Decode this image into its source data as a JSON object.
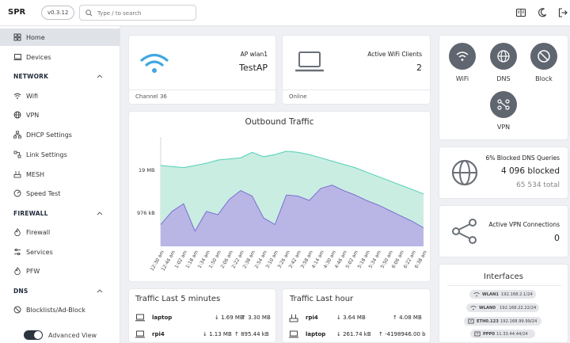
{
  "header": {
    "brand": "SPR",
    "version": "v0.3.12",
    "search_placeholder": "Type / to search",
    "icons": [
      "book-icon",
      "moon-icon",
      "logout-icon"
    ]
  },
  "sidebar": {
    "home": "Home",
    "devices": "Devices",
    "network_section": "NETWORK",
    "network_items": [
      "Wifi",
      "VPN",
      "DHCP Settings",
      "Link Settings",
      "MESH",
      "Speed Test"
    ],
    "firewall_section": "FIREWALL",
    "firewall_items": [
      "Firewall",
      "Services",
      "PFW"
    ],
    "dns_section": "DNS",
    "dns_items": [
      "Blocklists/Ad-Block"
    ],
    "advanced_view": "Advanced View"
  },
  "ap_card": {
    "title": "AP wlan1",
    "value": "TestAP",
    "footer": "Channel 36"
  },
  "clients_card": {
    "title": "Active WiFi Clients",
    "value": "2",
    "footer": "Online"
  },
  "quick_links": [
    "WiFi",
    "DNS",
    "Block",
    "VPN"
  ],
  "dns_card": {
    "title": "6% Blocked DNS Queries",
    "blocked": "4 096 blocked",
    "total": "65 534 total"
  },
  "vpn_card": {
    "title": "Active VPN Connections",
    "value": "0"
  },
  "interfaces": {
    "title": "Interfaces",
    "items": [
      {
        "name": "WLAN1",
        "ip": "192.168.2.1/24"
      },
      {
        "name": "WLAN0",
        "ip": "192.168.22.22/24"
      },
      {
        "name": "ETH0.123",
        "ip": "192.168.99.99/24"
      },
      {
        "name": "PPP0",
        "ip": "11.33.44.44/24"
      }
    ]
  },
  "traffic5": {
    "title": "Traffic Last 5 minutes",
    "rows": [
      {
        "device": "laptop",
        "down": "1.69 MB",
        "up": "3.30 MB"
      },
      {
        "device": "rpi4",
        "down": "1.13 MB",
        "up": "895.44 kB"
      }
    ]
  },
  "traffic_hour": {
    "title": "Traffic Last hour",
    "rows": [
      {
        "device": "rpi4",
        "down": "3.64 MB",
        "up": "4.08 MB"
      },
      {
        "device": "laptop",
        "down": "261.74 kB",
        "up": "-4198946.00 b"
      }
    ]
  },
  "chart_data": {
    "type": "area",
    "title": "Outbound Traffic",
    "y_tick_labels": [
      "976 kB",
      "19 MB"
    ],
    "x": [
      "12:30 am",
      "12:46 am",
      "1:02 am",
      "1:18 am",
      "1:34 am",
      "1:50 am",
      "2:06 am",
      "2:22 am",
      "2:38 am",
      "2:54 am",
      "3:10 am",
      "3:26 am",
      "3:42 am",
      "3:58 am",
      "4:14 am",
      "4:30 am",
      "4:46 am",
      "5:02 am",
      "5:18 am",
      "5:34 am",
      "5:50 am",
      "6:06 am",
      "6:22 am",
      "6:38 am"
    ],
    "series": [
      {
        "color": "#c7ece0",
        "line": "#4fd1b5",
        "values": [
          0.74,
          0.73,
          0.72,
          0.74,
          0.76,
          0.79,
          0.8,
          0.81,
          0.86,
          0.82,
          0.84,
          0.87,
          0.86,
          0.84,
          0.81,
          0.78,
          0.75,
          0.72,
          0.68,
          0.64,
          0.6,
          0.56,
          0.52,
          0.48
        ]
      },
      {
        "color": "#b7b3e6",
        "line": "#7b6fd0",
        "values": [
          0.2,
          0.32,
          0.39,
          0.14,
          0.32,
          0.29,
          0.43,
          0.51,
          0.46,
          0.26,
          0.2,
          0.47,
          0.46,
          0.42,
          0.53,
          0.56,
          0.51,
          0.47,
          0.42,
          0.38,
          0.33,
          0.28,
          0.23,
          0.17
        ]
      }
    ]
  }
}
